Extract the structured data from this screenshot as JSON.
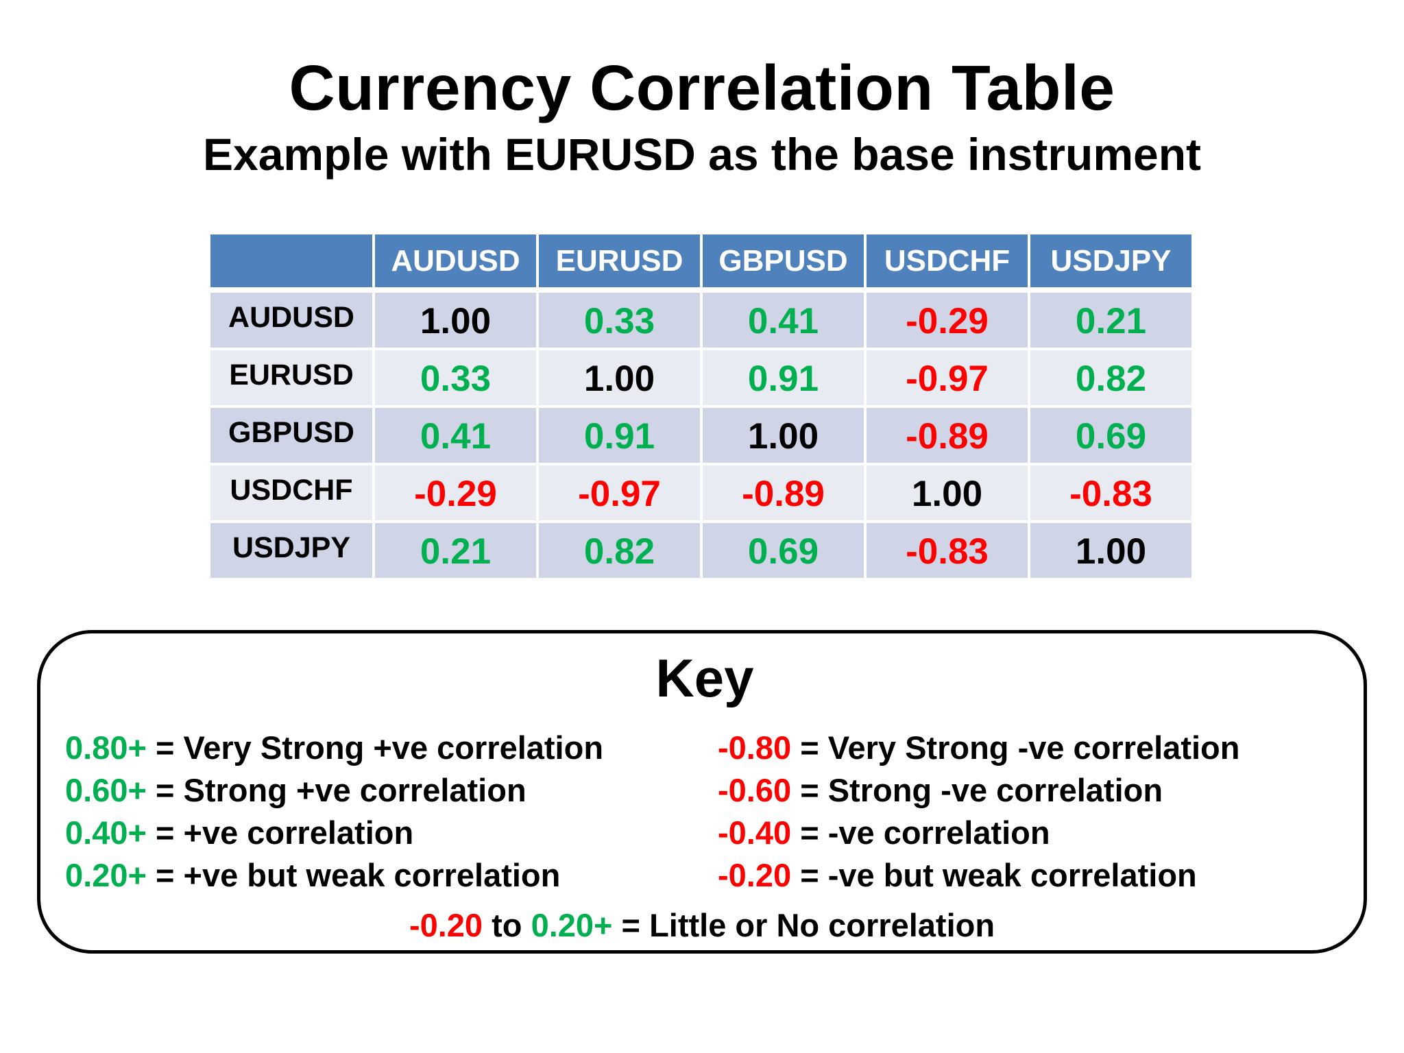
{
  "header": {
    "title": "Currency Correlation Table",
    "subtitle": "Example with EURUSD as the base instrument"
  },
  "colors": {
    "header_fill": "#4f81bd",
    "row_fill_odd": "#cfd5e6",
    "row_fill_even": "#e9ebf2",
    "positive": "#00b050",
    "negative": "#ff0000",
    "neutral": "#000000"
  },
  "table": {
    "corner": "",
    "columns": [
      "AUDUSD",
      "EURUSD",
      "GBPUSD",
      "USDCHF",
      "USDJPY"
    ],
    "rows": [
      {
        "label": "AUDUSD",
        "values": [
          "1.00",
          "0.33",
          "0.41",
          "-0.29",
          "0.21"
        ]
      },
      {
        "label": "EURUSD",
        "values": [
          "0.33",
          "1.00",
          "0.91",
          "-0.97",
          "0.82"
        ]
      },
      {
        "label": "GBPUSD",
        "values": [
          "0.41",
          "0.91",
          "1.00",
          "-0.89",
          "0.69"
        ]
      },
      {
        "label": "USDCHF",
        "values": [
          "-0.29",
          "-0.97",
          "-0.89",
          "1.00",
          "-0.83"
        ]
      },
      {
        "label": "USDJPY",
        "values": [
          "0.21",
          "0.82",
          "0.69",
          "-0.83",
          "1.00"
        ]
      }
    ]
  },
  "key": {
    "title": "Key",
    "positive": [
      {
        "threshold": "0.80+",
        "text": " = Very Strong +ve correlation"
      },
      {
        "threshold": "0.60+",
        "text": " = Strong +ve correlation"
      },
      {
        "threshold": "0.40+",
        "text": " = +ve correlation"
      },
      {
        "threshold": "0.20+",
        "text": " = +ve but weak correlation"
      }
    ],
    "negative": [
      {
        "threshold": "-0.80",
        "text": " = Very Strong -ve correlation"
      },
      {
        "threshold": "-0.60",
        "text": " = Strong -ve correlation"
      },
      {
        "threshold": "-0.40",
        "text": " = -ve correlation"
      },
      {
        "threshold": "-0.20",
        "text": " = -ve but weak correlation"
      }
    ],
    "footer": {
      "low": "-0.20",
      "to": " to ",
      "high": "0.20+",
      "text": " = Little or No correlation"
    }
  }
}
